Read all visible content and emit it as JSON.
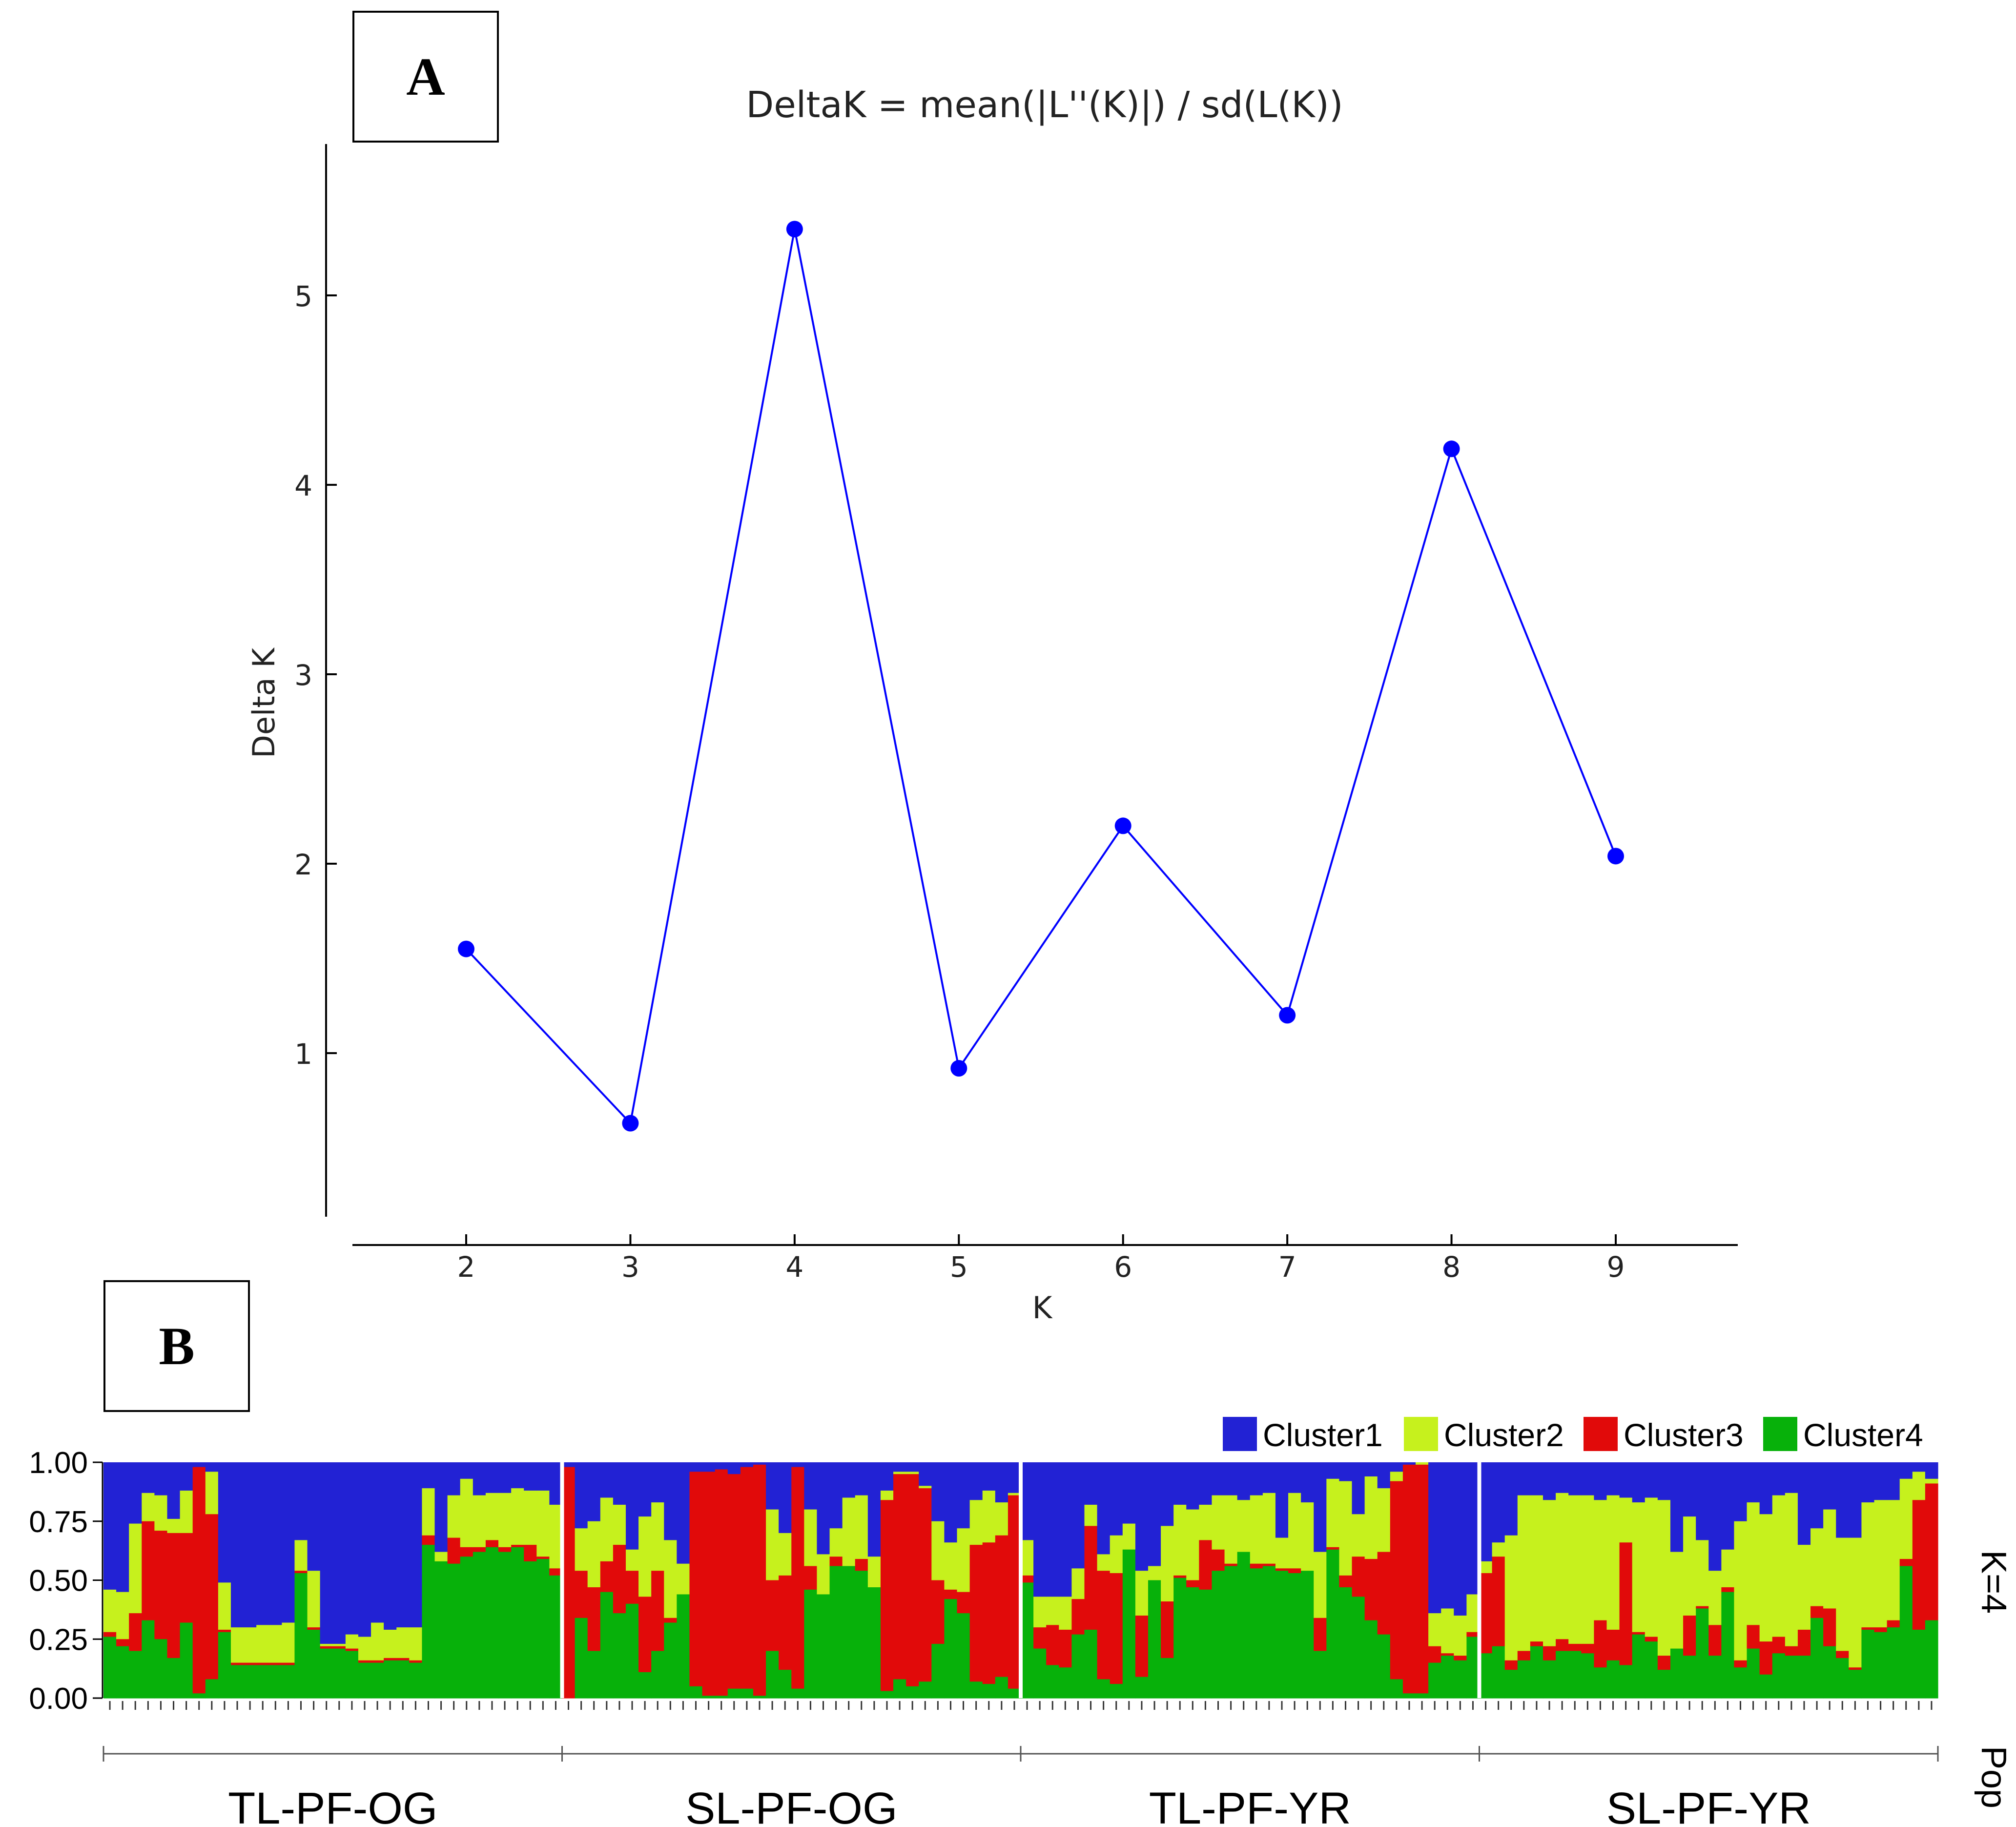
{
  "panels": {
    "a_label": "A",
    "b_label": "B"
  },
  "chart_data": [
    {
      "type": "line",
      "title": "DeltaK = mean(|L''(K)|) / sd(L(K))",
      "xlabel": "K",
      "ylabel": "Delta K",
      "x": [
        2,
        3,
        4,
        5,
        6,
        7,
        8,
        9
      ],
      "y": [
        1.55,
        0.63,
        5.35,
        0.92,
        2.2,
        1.2,
        4.19,
        2.04
      ],
      "xticks": [
        "2",
        "3",
        "4",
        "5",
        "6",
        "7",
        "8",
        "9"
      ],
      "yticks": [
        "1",
        "2",
        "3",
        "4",
        "5"
      ],
      "color": "#0000ff"
    },
    {
      "type": "stacked-bar",
      "title": "",
      "ylabel": "",
      "yticks": [
        "1.00",
        "0.75",
        "0.50",
        "0.25",
        "0.00"
      ],
      "k_label": "K=4",
      "pop_label": "Pop",
      "legend": [
        {
          "name": "Cluster1",
          "color": "#2222d4"
        },
        {
          "name": "Cluster2",
          "color": "#c6f11d"
        },
        {
          "name": "Cluster3",
          "color": "#e10a0a"
        },
        {
          "name": "Cluster4",
          "color": "#07b10a"
        }
      ],
      "populations": [
        {
          "name": "TL-PF-OG",
          "individuals": [
            [
              0.54,
              0.18,
              0.02,
              0.26
            ],
            [
              0.55,
              0.2,
              0.03,
              0.22
            ],
            [
              0.26,
              0.38,
              0.16,
              0.2
            ],
            [
              0.13,
              0.12,
              0.42,
              0.33
            ],
            [
              0.14,
              0.15,
              0.46,
              0.25
            ],
            [
              0.24,
              0.06,
              0.53,
              0.17
            ],
            [
              0.12,
              0.18,
              0.38,
              0.32
            ],
            [
              0.02,
              0.0,
              0.96,
              0.02
            ],
            [
              0.04,
              0.18,
              0.7,
              0.08
            ],
            [
              0.51,
              0.2,
              0.01,
              0.28
            ],
            [
              0.7,
              0.15,
              0.01,
              0.14
            ],
            [
              0.7,
              0.15,
              0.01,
              0.14
            ],
            [
              0.69,
              0.16,
              0.01,
              0.14
            ],
            [
              0.69,
              0.16,
              0.01,
              0.14
            ],
            [
              0.68,
              0.17,
              0.01,
              0.14
            ],
            [
              0.33,
              0.13,
              0.01,
              0.53
            ],
            [
              0.46,
              0.24,
              0.01,
              0.29
            ],
            [
              0.77,
              0.01,
              0.01,
              0.21
            ],
            [
              0.77,
              0.01,
              0.01,
              0.21
            ],
            [
              0.73,
              0.06,
              0.01,
              0.2
            ],
            [
              0.74,
              0.1,
              0.01,
              0.15
            ],
            [
              0.68,
              0.16,
              0.01,
              0.15
            ],
            [
              0.71,
              0.12,
              0.01,
              0.16
            ],
            [
              0.7,
              0.13,
              0.01,
              0.16
            ],
            [
              0.7,
              0.14,
              0.01,
              0.15
            ],
            [
              0.11,
              0.2,
              0.04,
              0.65
            ],
            [
              0.38,
              0.04,
              0.0,
              0.58
            ],
            [
              0.14,
              0.18,
              0.11,
              0.57
            ],
            [
              0.07,
              0.29,
              0.04,
              0.6
            ],
            [
              0.14,
              0.22,
              0.02,
              0.62
            ],
            [
              0.13,
              0.2,
              0.03,
              0.64
            ],
            [
              0.13,
              0.23,
              0.02,
              0.62
            ],
            [
              0.11,
              0.24,
              0.01,
              0.64
            ],
            [
              0.12,
              0.23,
              0.07,
              0.58
            ],
            [
              0.12,
              0.28,
              0.01,
              0.59
            ],
            [
              0.18,
              0.27,
              0.03,
              0.52
            ]
          ]
        },
        {
          "name": "SL-PF-OG",
          "individuals": [
            [
              0.02,
              0.0,
              0.98,
              0.0
            ],
            [
              0.28,
              0.18,
              0.2,
              0.34
            ],
            [
              0.25,
              0.28,
              0.27,
              0.2
            ],
            [
              0.15,
              0.27,
              0.13,
              0.45
            ],
            [
              0.18,
              0.17,
              0.29,
              0.36
            ],
            [
              0.37,
              0.09,
              0.14,
              0.4
            ],
            [
              0.23,
              0.34,
              0.32,
              0.11
            ],
            [
              0.17,
              0.29,
              0.34,
              0.2
            ],
            [
              0.33,
              0.33,
              0.02,
              0.32
            ],
            [
              0.43,
              0.13,
              0.0,
              0.44
            ],
            [
              0.04,
              0.0,
              0.91,
              0.05
            ],
            [
              0.04,
              0.0,
              0.95,
              0.01
            ],
            [
              0.03,
              0.0,
              0.96,
              0.01
            ],
            [
              0.05,
              0.0,
              0.91,
              0.04
            ],
            [
              0.02,
              0.0,
              0.94,
              0.04
            ],
            [
              0.01,
              0.0,
              0.98,
              0.01
            ],
            [
              0.2,
              0.3,
              0.3,
              0.2
            ],
            [
              0.3,
              0.18,
              0.4,
              0.12
            ],
            [
              0.02,
              0.0,
              0.94,
              0.04
            ],
            [
              0.2,
              0.24,
              0.1,
              0.46
            ],
            [
              0.39,
              0.17,
              0.0,
              0.44
            ],
            [
              0.28,
              0.12,
              0.04,
              0.56
            ],
            [
              0.15,
              0.29,
              0.0,
              0.56
            ],
            [
              0.14,
              0.27,
              0.05,
              0.54
            ],
            [
              0.4,
              0.13,
              0.0,
              0.47
            ],
            [
              0.12,
              0.04,
              0.81,
              0.03
            ],
            [
              0.04,
              0.01,
              0.87,
              0.08
            ],
            [
              0.04,
              0.01,
              0.9,
              0.05
            ],
            [
              0.1,
              0.01,
              0.82,
              0.07
            ],
            [
              0.25,
              0.25,
              0.27,
              0.23
            ],
            [
              0.34,
              0.2,
              0.04,
              0.42
            ],
            [
              0.28,
              0.27,
              0.09,
              0.36
            ],
            [
              0.16,
              0.19,
              0.58,
              0.07
            ],
            [
              0.12,
              0.22,
              0.6,
              0.06
            ],
            [
              0.17,
              0.14,
              0.6,
              0.09
            ],
            [
              0.13,
              0.01,
              0.82,
              0.04
            ]
          ]
        },
        {
          "name": "TL-PF-YR",
          "individuals": [
            [
              0.33,
              0.15,
              0.03,
              0.49
            ],
            [
              0.57,
              0.13,
              0.09,
              0.21
            ],
            [
              0.57,
              0.12,
              0.17,
              0.14
            ],
            [
              0.57,
              0.14,
              0.16,
              0.13
            ],
            [
              0.45,
              0.13,
              0.15,
              0.27
            ],
            [
              0.18,
              0.09,
              0.44,
              0.29
            ],
            [
              0.39,
              0.07,
              0.46,
              0.08
            ],
            [
              0.31,
              0.16,
              0.47,
              0.06
            ],
            [
              0.26,
              0.11,
              0.0,
              0.63
            ],
            [
              0.46,
              0.19,
              0.26,
              0.09
            ],
            [
              0.44,
              0.06,
              0.0,
              0.5
            ],
            [
              0.27,
              0.32,
              0.24,
              0.17
            ],
            [
              0.18,
              0.3,
              0.01,
              0.51
            ],
            [
              0.2,
              0.3,
              0.03,
              0.47
            ],
            [
              0.18,
              0.15,
              0.21,
              0.46
            ],
            [
              0.14,
              0.23,
              0.09,
              0.54
            ],
            [
              0.14,
              0.29,
              0.01,
              0.56
            ],
            [
              0.16,
              0.22,
              0.0,
              0.62
            ],
            [
              0.14,
              0.29,
              0.02,
              0.55
            ],
            [
              0.13,
              0.3,
              0.01,
              0.56
            ],
            [
              0.32,
              0.13,
              0.01,
              0.54
            ],
            [
              0.13,
              0.32,
              0.02,
              0.53
            ],
            [
              0.17,
              0.29,
              0.0,
              0.54
            ],
            [
              0.38,
              0.28,
              0.14,
              0.2
            ],
            [
              0.07,
              0.29,
              0.01,
              0.63
            ],
            [
              0.08,
              0.4,
              0.05,
              0.47
            ],
            [
              0.22,
              0.18,
              0.17,
              0.43
            ],
            [
              0.06,
              0.35,
              0.26,
              0.33
            ],
            [
              0.11,
              0.27,
              0.35,
              0.27
            ],
            [
              0.04,
              0.04,
              0.84,
              0.08
            ],
            [
              0.01,
              0.0,
              0.97,
              0.02
            ],
            [
              0.0,
              0.01,
              0.97,
              0.02
            ],
            [
              0.64,
              0.14,
              0.07,
              0.15
            ],
            [
              0.62,
              0.19,
              0.01,
              0.18
            ],
            [
              0.65,
              0.17,
              0.02,
              0.16
            ],
            [
              0.56,
              0.16,
              0.02,
              0.26
            ]
          ]
        },
        {
          "name": "SL-PF-YR",
          "individuals": [
            [
              0.42,
              0.05,
              0.34,
              0.19
            ],
            [
              0.34,
              0.06,
              0.38,
              0.22
            ],
            [
              0.31,
              0.53,
              0.04,
              0.12
            ],
            [
              0.14,
              0.66,
              0.04,
              0.16
            ],
            [
              0.14,
              0.62,
              0.02,
              0.22
            ],
            [
              0.16,
              0.62,
              0.06,
              0.16
            ],
            [
              0.13,
              0.62,
              0.05,
              0.2
            ],
            [
              0.14,
              0.63,
              0.03,
              0.2
            ],
            [
              0.14,
              0.63,
              0.04,
              0.19
            ],
            [
              0.16,
              0.51,
              0.2,
              0.13
            ],
            [
              0.14,
              0.57,
              0.13,
              0.16
            ],
            [
              0.15,
              0.19,
              0.52,
              0.14
            ],
            [
              0.17,
              0.55,
              0.01,
              0.27
            ],
            [
              0.15,
              0.59,
              0.02,
              0.24
            ],
            [
              0.16,
              0.66,
              0.06,
              0.12
            ],
            [
              0.38,
              0.41,
              0.0,
              0.21
            ],
            [
              0.23,
              0.42,
              0.17,
              0.18
            ],
            [
              0.33,
              0.28,
              0.01,
              0.38
            ],
            [
              0.46,
              0.23,
              0.13,
              0.18
            ],
            [
              0.37,
              0.16,
              0.02,
              0.45
            ],
            [
              0.25,
              0.59,
              0.03,
              0.13
            ],
            [
              0.17,
              0.52,
              0.1,
              0.21
            ],
            [
              0.22,
              0.54,
              0.14,
              0.1
            ],
            [
              0.14,
              0.6,
              0.07,
              0.19
            ],
            [
              0.13,
              0.65,
              0.04,
              0.18
            ],
            [
              0.35,
              0.36,
              0.11,
              0.18
            ],
            [
              0.28,
              0.33,
              0.05,
              0.34
            ],
            [
              0.2,
              0.42,
              0.16,
              0.22
            ],
            [
              0.32,
              0.48,
              0.03,
              0.17
            ],
            [
              0.32,
              0.55,
              0.01,
              0.12
            ],
            [
              0.17,
              0.53,
              0.01,
              0.29
            ],
            [
              0.16,
              0.54,
              0.02,
              0.28
            ],
            [
              0.16,
              0.51,
              0.03,
              0.3
            ],
            [
              0.07,
              0.34,
              0.03,
              0.56
            ],
            [
              0.04,
              0.12,
              0.55,
              0.29
            ],
            [
              0.07,
              0.02,
              0.58,
              0.33
            ]
          ]
        }
      ]
    }
  ]
}
